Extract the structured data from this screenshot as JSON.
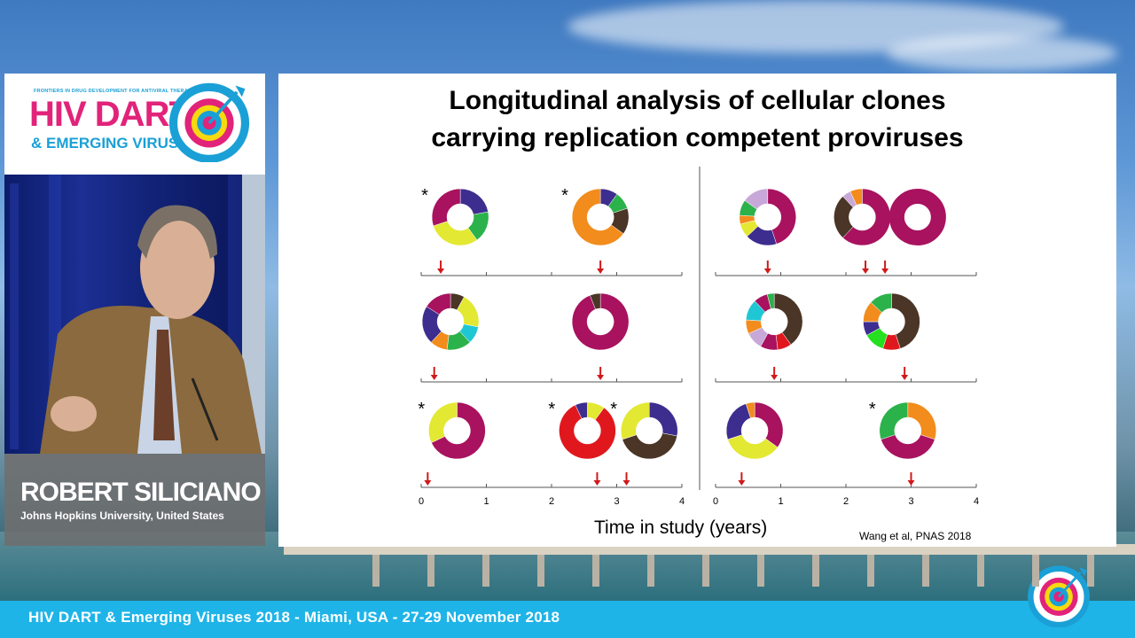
{
  "conference": {
    "logo_tagline": "FRONTIERS IN DRUG DEVELOPMENT FOR ANTIVIRAL THERAPIES",
    "logo_title": "HIV DART",
    "logo_subtitle": "& EMERGING VIRUSES",
    "footer": "HIV DART & Emerging Viruses 2018 - Miami, USA - 27-29 November 2018"
  },
  "speaker": {
    "name": "ROBERT SILICIANO",
    "affiliation": "Johns Hopkins University, United States"
  },
  "slide": {
    "title_line1": "Longitudinal analysis of cellular clones",
    "title_line2": "carrying replication competent proviruses",
    "x_axis_label": "Time in study (years)",
    "citation": "Wang et al, PNAS 2018"
  },
  "colors": {
    "magenta": "#a8125f",
    "navy": "#3d2d8f",
    "green": "#2bb24a",
    "yellow": "#e3e832",
    "orange": "#f28c1c",
    "brown": "#4a3526",
    "red": "#e0181e",
    "cyan": "#1fc7d4",
    "lavender": "#c8a8d8",
    "lime": "#24e01e",
    "footer_bar": "#1fb4e8",
    "logo_pink": "#e2237a",
    "logo_blue": "#1aa0d6"
  },
  "chart_data": {
    "type": "donut-timeline",
    "x_ticks": [
      "0",
      "1",
      "2",
      "3",
      "4"
    ],
    "xlim": [
      0,
      4
    ],
    "panels": [
      {
        "arrows_years": [
          0.3,
          2.75
        ],
        "donuts": [
          {
            "time": 0.6,
            "star": true,
            "segments": [
              {
                "color": "navy",
                "value": 22
              },
              {
                "color": "green",
                "value": 18
              },
              {
                "color": "yellow",
                "value": 30
              },
              {
                "color": "magenta",
                "value": 30
              }
            ]
          },
          {
            "time": 2.75,
            "star": true,
            "segments": [
              {
                "color": "navy",
                "value": 10
              },
              {
                "color": "green",
                "value": 10
              },
              {
                "color": "brown",
                "value": 15
              },
              {
                "color": "orange",
                "value": 65
              }
            ]
          }
        ]
      },
      {
        "arrows_years": [
          0.8,
          2.3,
          2.6
        ],
        "donuts": [
          {
            "time": 0.8,
            "star": false,
            "segments": [
              {
                "color": "magenta",
                "value": 45
              },
              {
                "color": "navy",
                "value": 18
              },
              {
                "color": "yellow",
                "value": 8
              },
              {
                "color": "orange",
                "value": 5
              },
              {
                "color": "green",
                "value": 9
              },
              {
                "color": "lavender",
                "value": 15
              }
            ]
          },
          {
            "time": 2.25,
            "star": false,
            "segments": [
              {
                "color": "magenta",
                "value": 62
              },
              {
                "color": "brown",
                "value": 26
              },
              {
                "color": "lavender",
                "value": 5
              },
              {
                "color": "orange",
                "value": 7
              }
            ]
          },
          {
            "time": 3.1,
            "star": false,
            "segments": [
              {
                "color": "magenta",
                "value": 100
              }
            ]
          }
        ]
      },
      {
        "arrows_years": [
          0.2,
          2.75
        ],
        "donuts": [
          {
            "time": 0.45,
            "star": false,
            "segments": [
              {
                "color": "brown",
                "value": 8
              },
              {
                "color": "yellow",
                "value": 20
              },
              {
                "color": "cyan",
                "value": 10
              },
              {
                "color": "green",
                "value": 14
              },
              {
                "color": "orange",
                "value": 10
              },
              {
                "color": "navy",
                "value": 22
              },
              {
                "color": "magenta",
                "value": 16
              }
            ]
          },
          {
            "time": 2.75,
            "star": false,
            "segments": [
              {
                "color": "magenta",
                "value": 94
              },
              {
                "color": "brown",
                "value": 6
              }
            ]
          }
        ]
      },
      {
        "arrows_years": [
          0.9,
          2.9
        ],
        "donuts": [
          {
            "time": 0.9,
            "star": false,
            "segments": [
              {
                "color": "brown",
                "value": 40
              },
              {
                "color": "red",
                "value": 8
              },
              {
                "color": "magenta",
                "value": 10
              },
              {
                "color": "lavender",
                "value": 10
              },
              {
                "color": "orange",
                "value": 8
              },
              {
                "color": "cyan",
                "value": 12
              },
              {
                "color": "magenta",
                "value": 8
              },
              {
                "color": "green",
                "value": 4
              }
            ]
          },
          {
            "time": 2.7,
            "star": false,
            "segments": [
              {
                "color": "brown",
                "value": 45
              },
              {
                "color": "red",
                "value": 10
              },
              {
                "color": "lime",
                "value": 12
              },
              {
                "color": "navy",
                "value": 8
              },
              {
                "color": "orange",
                "value": 12
              },
              {
                "color": "green",
                "value": 13
              }
            ]
          }
        ]
      },
      {
        "arrows_years": [
          0.1,
          2.7,
          3.15
        ],
        "donuts": [
          {
            "time": 0.55,
            "star": true,
            "segments": [
              {
                "color": "magenta",
                "value": 68
              },
              {
                "color": "yellow",
                "value": 32
              }
            ]
          },
          {
            "time": 2.55,
            "star": true,
            "segments": [
              {
                "color": "yellow",
                "value": 10
              },
              {
                "color": "red",
                "value": 83
              },
              {
                "color": "navy",
                "value": 7
              }
            ]
          },
          {
            "time": 3.5,
            "star": true,
            "segments": [
              {
                "color": "navy",
                "value": 28
              },
              {
                "color": "brown",
                "value": 42
              },
              {
                "color": "yellow",
                "value": 30
              }
            ]
          }
        ]
      },
      {
        "arrows_years": [
          0.4,
          3.0
        ],
        "donuts": [
          {
            "time": 0.6,
            "star": false,
            "segments": [
              {
                "color": "magenta",
                "value": 35
              },
              {
                "color": "yellow",
                "value": 35
              },
              {
                "color": "navy",
                "value": 25
              },
              {
                "color": "orange",
                "value": 5
              }
            ]
          },
          {
            "time": 2.95,
            "star": true,
            "segments": [
              {
                "color": "orange",
                "value": 30
              },
              {
                "color": "magenta",
                "value": 40
              },
              {
                "color": "green",
                "value": 30
              }
            ]
          }
        ]
      }
    ]
  }
}
